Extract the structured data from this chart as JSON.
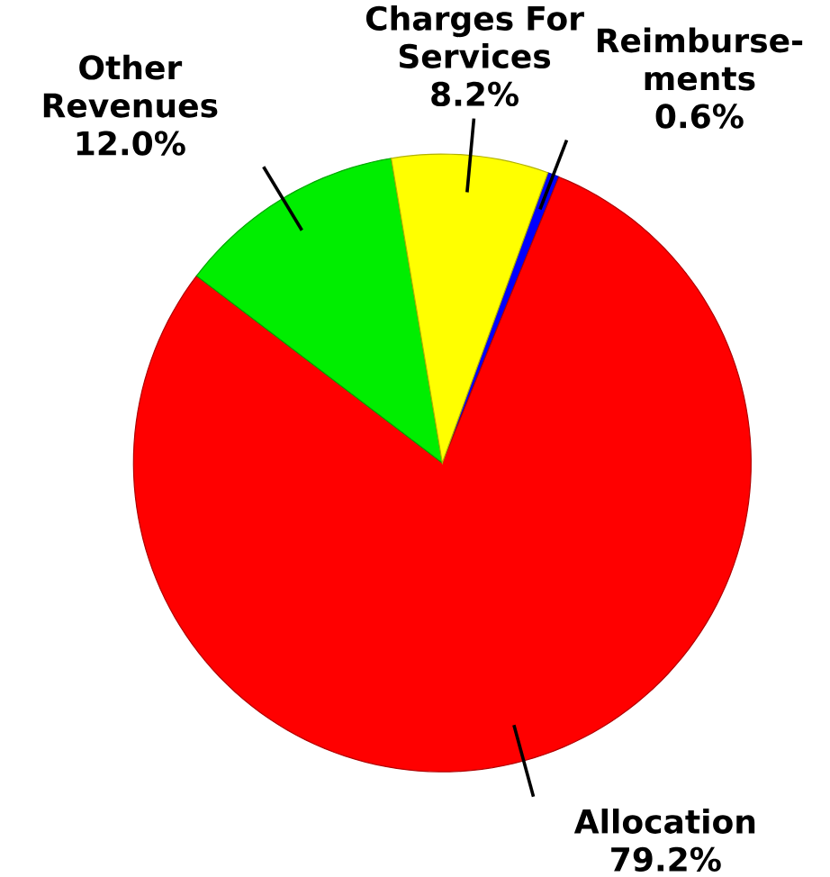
{
  "chart_data": {
    "type": "pie",
    "categories": [
      "Reimburse-ments",
      "Allocation",
      "Other Revenues",
      "Charges For Services"
    ],
    "values": [
      0.6,
      79.2,
      12.0,
      8.2
    ],
    "colors": [
      "#0000ff",
      "#ff0000",
      "#00ee00",
      "#ffff00"
    ],
    "value_labels": [
      "0.6%",
      "79.2%",
      "12.0%",
      "8.2%"
    ]
  }
}
